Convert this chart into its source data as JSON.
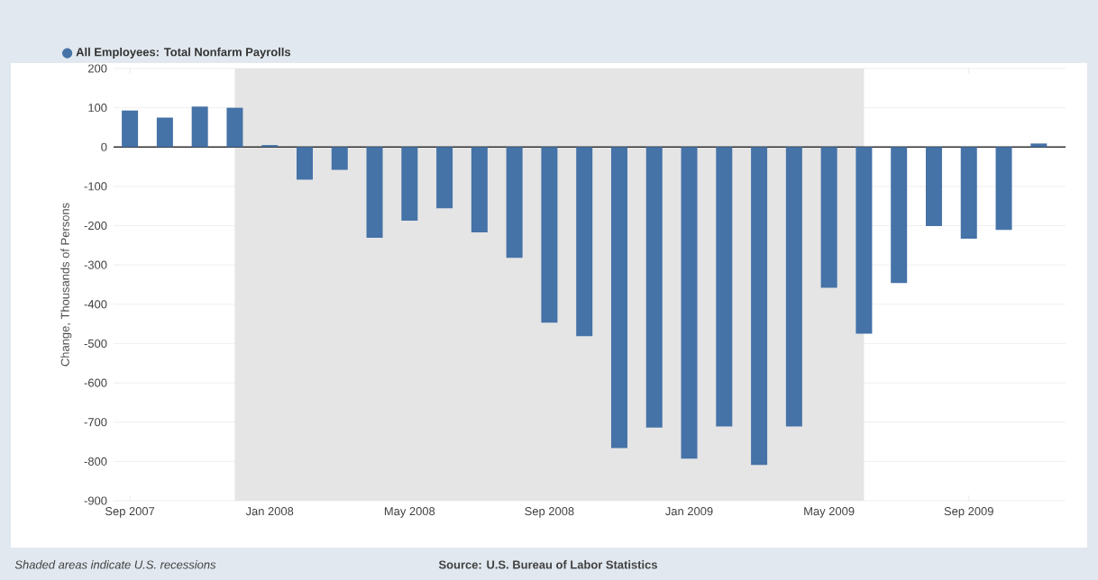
{
  "chart_data": {
    "type": "bar",
    "ylabel": "Change, Thousands of Persons",
    "x": [
      "2007-09",
      "2007-10",
      "2007-11",
      "2007-12",
      "2008-01",
      "2008-02",
      "2008-03",
      "2008-04",
      "2008-05",
      "2008-06",
      "2008-07",
      "2008-08",
      "2008-09",
      "2008-10",
      "2008-11",
      "2008-12",
      "2009-01",
      "2009-02",
      "2009-03",
      "2009-04",
      "2009-05",
      "2009-06",
      "2009-07",
      "2009-08",
      "2009-09",
      "2009-10",
      "2009-11"
    ],
    "series": [
      {
        "name": "All Employees: Total Nonfarm Payrolls",
        "color": "#4572a7",
        "values": [
          93,
          75,
          103,
          100,
          5,
          -83,
          -58,
          -231,
          -187,
          -156,
          -217,
          -282,
          -447,
          -481,
          -766,
          -714,
          -793,
          -711,
          -809,
          -711,
          -358,
          -475,
          -346,
          -201,
          -233,
          -211,
          9
        ]
      }
    ],
    "xlim": [
      "2007-08-17",
      "2009-11-24"
    ],
    "xticks": [
      {
        "value": "2007-09",
        "label": "Sep 2007"
      },
      {
        "value": "2008-01",
        "label": "Jan 2008"
      },
      {
        "value": "2008-05",
        "label": "May 2008"
      },
      {
        "value": "2008-09",
        "label": "Sep 2008"
      },
      {
        "value": "2009-01",
        "label": "Jan 2009"
      },
      {
        "value": "2009-05",
        "label": "May 2009"
      },
      {
        "value": "2009-09",
        "label": "Sep 2009"
      }
    ],
    "ylim": [
      -900,
      200
    ],
    "yticks": [
      -900,
      -800,
      -700,
      -600,
      -500,
      -400,
      -300,
      -200,
      -100,
      0,
      100,
      200
    ],
    "grid": "y",
    "legend": "top left",
    "bands": [
      {
        "axis": "x",
        "from": "2007-12",
        "to": "2009-06",
        "color": "#e5e5e5"
      }
    ],
    "ref_lines": [
      {
        "axis": "y",
        "value": 0,
        "color": "#333333"
      }
    ],
    "annotations": [
      "Shaded areas indicate U.S. recessions",
      "Source: U.S. Bureau of Labor Statistics"
    ]
  }
}
